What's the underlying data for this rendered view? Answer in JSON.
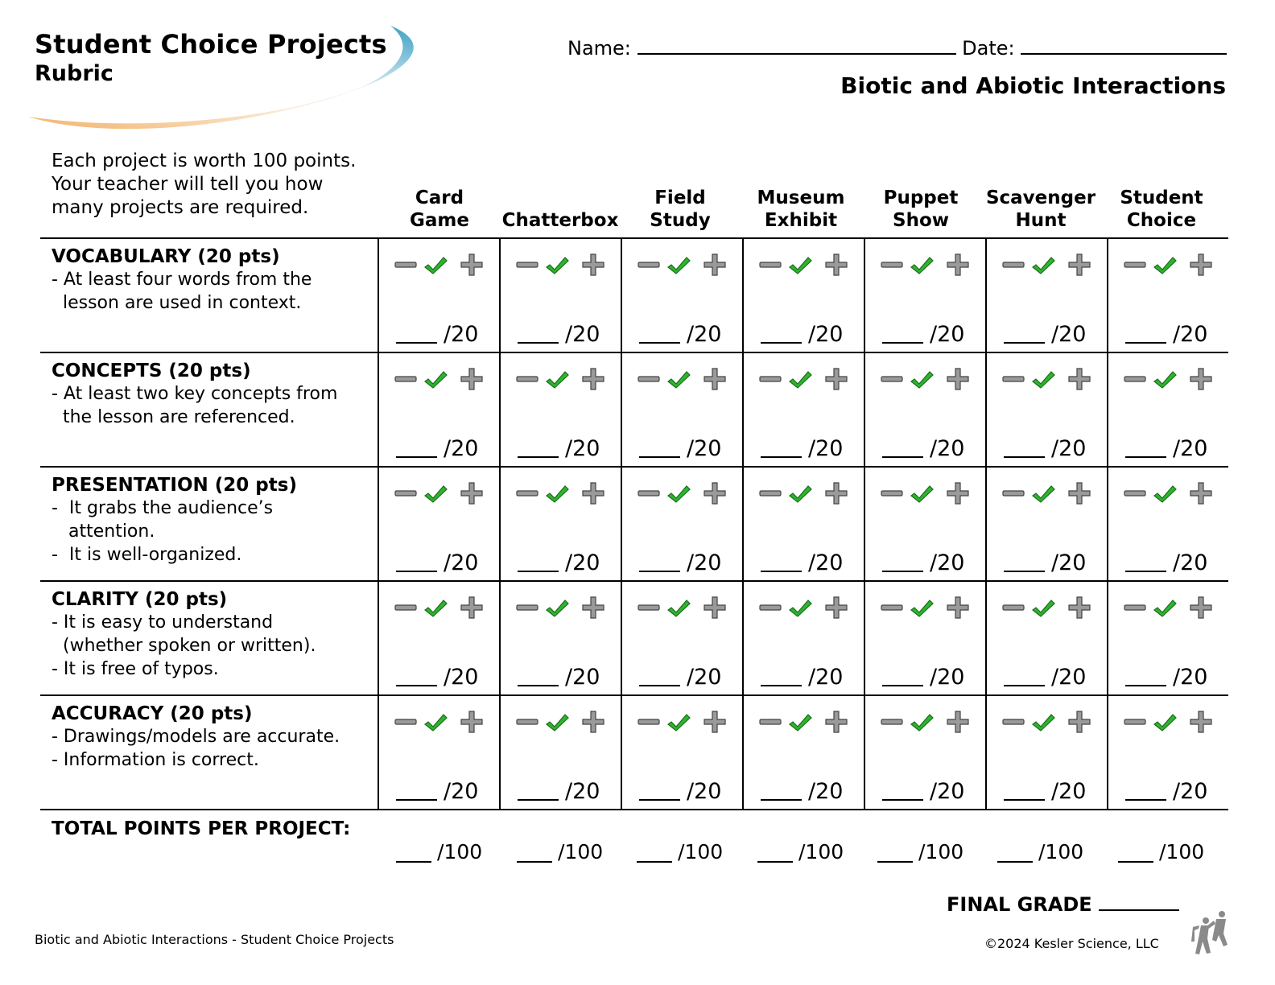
{
  "header": {
    "title": "Student Choice Projects",
    "subtitle": "Rubric",
    "name_label": "Name:",
    "date_label": "Date:",
    "topic": "Biotic and Abiotic Interactions"
  },
  "intro": "Each project is worth 100 points. Your teacher will tell you how many projects are required.",
  "columns": [
    {
      "line1": "Card",
      "line2": "Game"
    },
    {
      "line1": "",
      "line2": "Chatterbox"
    },
    {
      "line1": "Field",
      "line2": "Study"
    },
    {
      "line1": "Museum",
      "line2": "Exhibit"
    },
    {
      "line1": "Puppet",
      "line2": "Show"
    },
    {
      "line1": "Scavenger",
      "line2": "Hunt"
    },
    {
      "line1": "Student",
      "line2": "Choice"
    }
  ],
  "criteria": [
    {
      "title": "VOCABULARY (20 pts)",
      "desc": "- At least four words from the\n  lesson are used in context.",
      "max": "/20"
    },
    {
      "title": "CONCEPTS (20 pts)",
      "desc": "- At least two key concepts from\n  the lesson are referenced.",
      "max": "/20"
    },
    {
      "title": "PRESENTATION (20 pts)",
      "desc": "-  It grabs the audience’s\n   attention.\n-  It is well-organized.",
      "max": "/20"
    },
    {
      "title": "CLARITY (20 pts)",
      "desc": "- It is easy to understand\n  (whether spoken or written).\n- It is free of typos.",
      "max": "/20"
    },
    {
      "title": "ACCURACY (20 pts)",
      "desc": "- Drawings/models are accurate.\n- Information is correct.",
      "max": "/20"
    }
  ],
  "marks": {
    "minus": "minus-icon",
    "check": "check-icon",
    "plus": "plus-icon",
    "check_color": "#2db52d",
    "mark_color": "#9a9a9a"
  },
  "total": {
    "label": "TOTAL POINTS PER PROJECT:",
    "max": "/100"
  },
  "final_grade_label": "FINAL GRADE",
  "footer": {
    "left": "Biotic and Abiotic Interactions - Student Choice Projects",
    "right": "©2024 Kesler Science, LLC"
  }
}
